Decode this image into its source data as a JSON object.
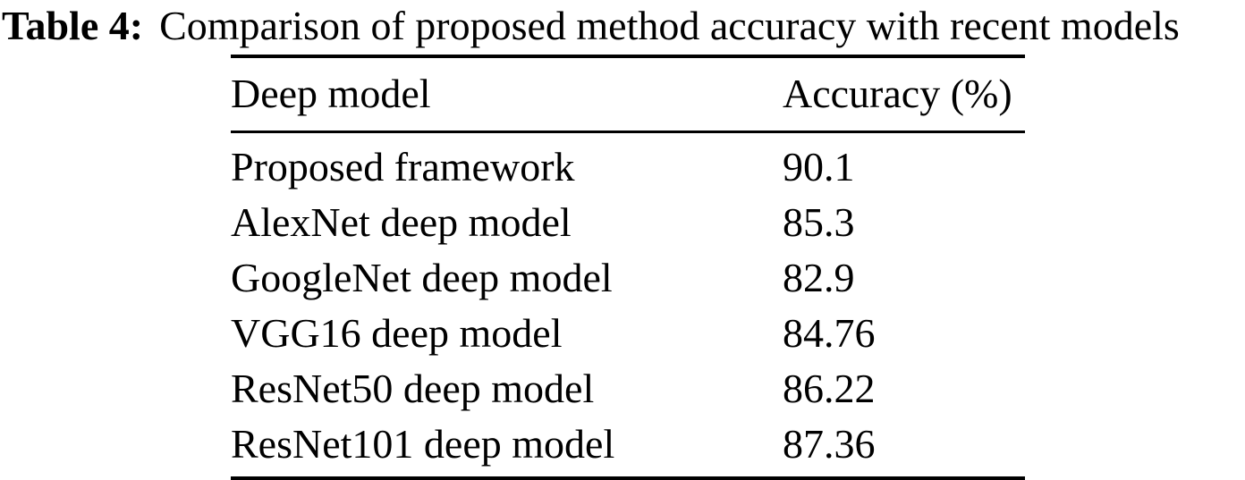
{
  "caption": {
    "label": "Table 4:",
    "text": "Comparison of proposed method accuracy with recent models"
  },
  "table": {
    "headers": {
      "model": "Deep model",
      "accuracy": "Accuracy (%)"
    },
    "rows": [
      {
        "model": "Proposed framework",
        "accuracy": "90.1"
      },
      {
        "model": "AlexNet deep model",
        "accuracy": "85.3"
      },
      {
        "model": "GoogleNet deep model",
        "accuracy": "82.9"
      },
      {
        "model": "VGG16 deep model",
        "accuracy": "84.76"
      },
      {
        "model": "ResNet50 deep model",
        "accuracy": "86.22"
      },
      {
        "model": "ResNet101 deep model",
        "accuracy": "87.36"
      }
    ]
  },
  "colors": {
    "background": "#ffffff",
    "text": "#000000",
    "rule": "#000000"
  }
}
